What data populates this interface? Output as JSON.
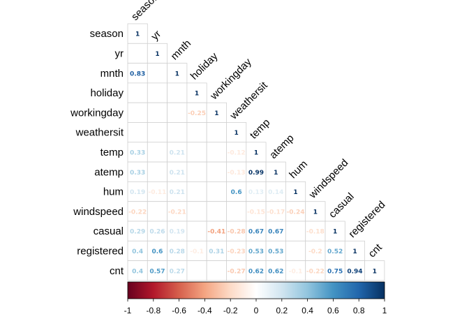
{
  "chart_data": {
    "type": "heatmap",
    "title": "",
    "layout": "lower-triangle",
    "variables": [
      "season",
      "yr",
      "mnth",
      "holiday",
      "workingday",
      "weathersit",
      "temp",
      "atemp",
      "hum",
      "windspeed",
      "casual",
      "registered",
      "cnt"
    ],
    "values": [
      [
        1
      ],
      [
        0,
        1
      ],
      [
        0.83,
        0,
        1
      ],
      [
        -0.01,
        0.01,
        0.02,
        1
      ],
      [
        0.01,
        0,
        -0.01,
        -0.25,
        1
      ],
      [
        0.02,
        -0.05,
        0.04,
        -0.03,
        0.06,
        1
      ],
      [
        0.33,
        0.05,
        0.21,
        -0.03,
        0.05,
        -0.12,
        1
      ],
      [
        0.33,
        0.05,
        0.21,
        -0.03,
        0.05,
        -0.13,
        0.99,
        1
      ],
      [
        0.19,
        -0.11,
        0.21,
        -0.02,
        0.02,
        0.6,
        0.13,
        0.14,
        1
      ],
      [
        -0.22,
        -0.01,
        -0.21,
        0.01,
        -0.02,
        0.04,
        -0.15,
        -0.17,
        -0.24,
        1
      ],
      [
        0.29,
        0.26,
        0.19,
        0.05,
        -0.41,
        -0.28,
        0.67,
        0.67,
        -0.07,
        -0.18,
        1
      ],
      [
        0.4,
        0.6,
        0.28,
        -0.1,
        0.31,
        -0.23,
        0.53,
        0.53,
        -0.05,
        -0.2,
        0.52,
        1
      ],
      [
        0.4,
        0.57,
        0.27,
        -0.05,
        0.06,
        -0.27,
        0.62,
        0.62,
        -0.1,
        -0.22,
        0.75,
        0.94,
        1
      ]
    ],
    "displayed_values": [
      [
        "1"
      ],
      [
        "",
        "1"
      ],
      [
        "0.83",
        "",
        "1"
      ],
      [
        "",
        "",
        "",
        "1"
      ],
      [
        "",
        "",
        "",
        "-0.25",
        "1"
      ],
      [
        "",
        "",
        "",
        "",
        "",
        "1"
      ],
      [
        "0.33",
        "",
        "0.21",
        "",
        "",
        "-0.12",
        "1"
      ],
      [
        "0.33",
        "",
        "0.21",
        "",
        "",
        "-0.13",
        "0.99",
        "1"
      ],
      [
        "0.19",
        "-0.11",
        "0.21",
        "",
        "",
        "0.6",
        "0.13",
        "0.14",
        "1"
      ],
      [
        "-0.22",
        "",
        "-0.21",
        "",
        "",
        "",
        "-0.15",
        "-0.17",
        "-0.24",
        "1"
      ],
      [
        "0.29",
        "0.26",
        "0.19",
        "",
        "-0.41",
        "-0.28",
        "0.67",
        "0.67",
        "",
        "-0.18",
        "1"
      ],
      [
        "0.4",
        "0.6",
        "0.28",
        "-0.1",
        "0.31",
        "-0.23",
        "0.53",
        "0.53",
        "",
        "-0.2",
        "0.52",
        "1"
      ],
      [
        "0.4",
        "0.57",
        "0.27",
        "",
        "",
        "-0.27",
        "0.62",
        "0.62",
        "-0.1",
        "-0.22",
        "0.75",
        "0.94",
        "1"
      ]
    ],
    "colorbar": {
      "range": [
        -1,
        1
      ],
      "ticks": [
        "-1",
        "-0.8",
        "-0.6",
        "-0.4",
        "-0.2",
        "0",
        "0.2",
        "0.4",
        "0.6",
        "0.8",
        "1"
      ],
      "colors": [
        "#67001f",
        "#b2182b",
        "#d6604d",
        "#f4a582",
        "#fddbc7",
        "#ffffff",
        "#d1e5f0",
        "#92c5de",
        "#4393c3",
        "#2166ac",
        "#053061"
      ]
    },
    "grid": true,
    "legend": "bottom"
  }
}
